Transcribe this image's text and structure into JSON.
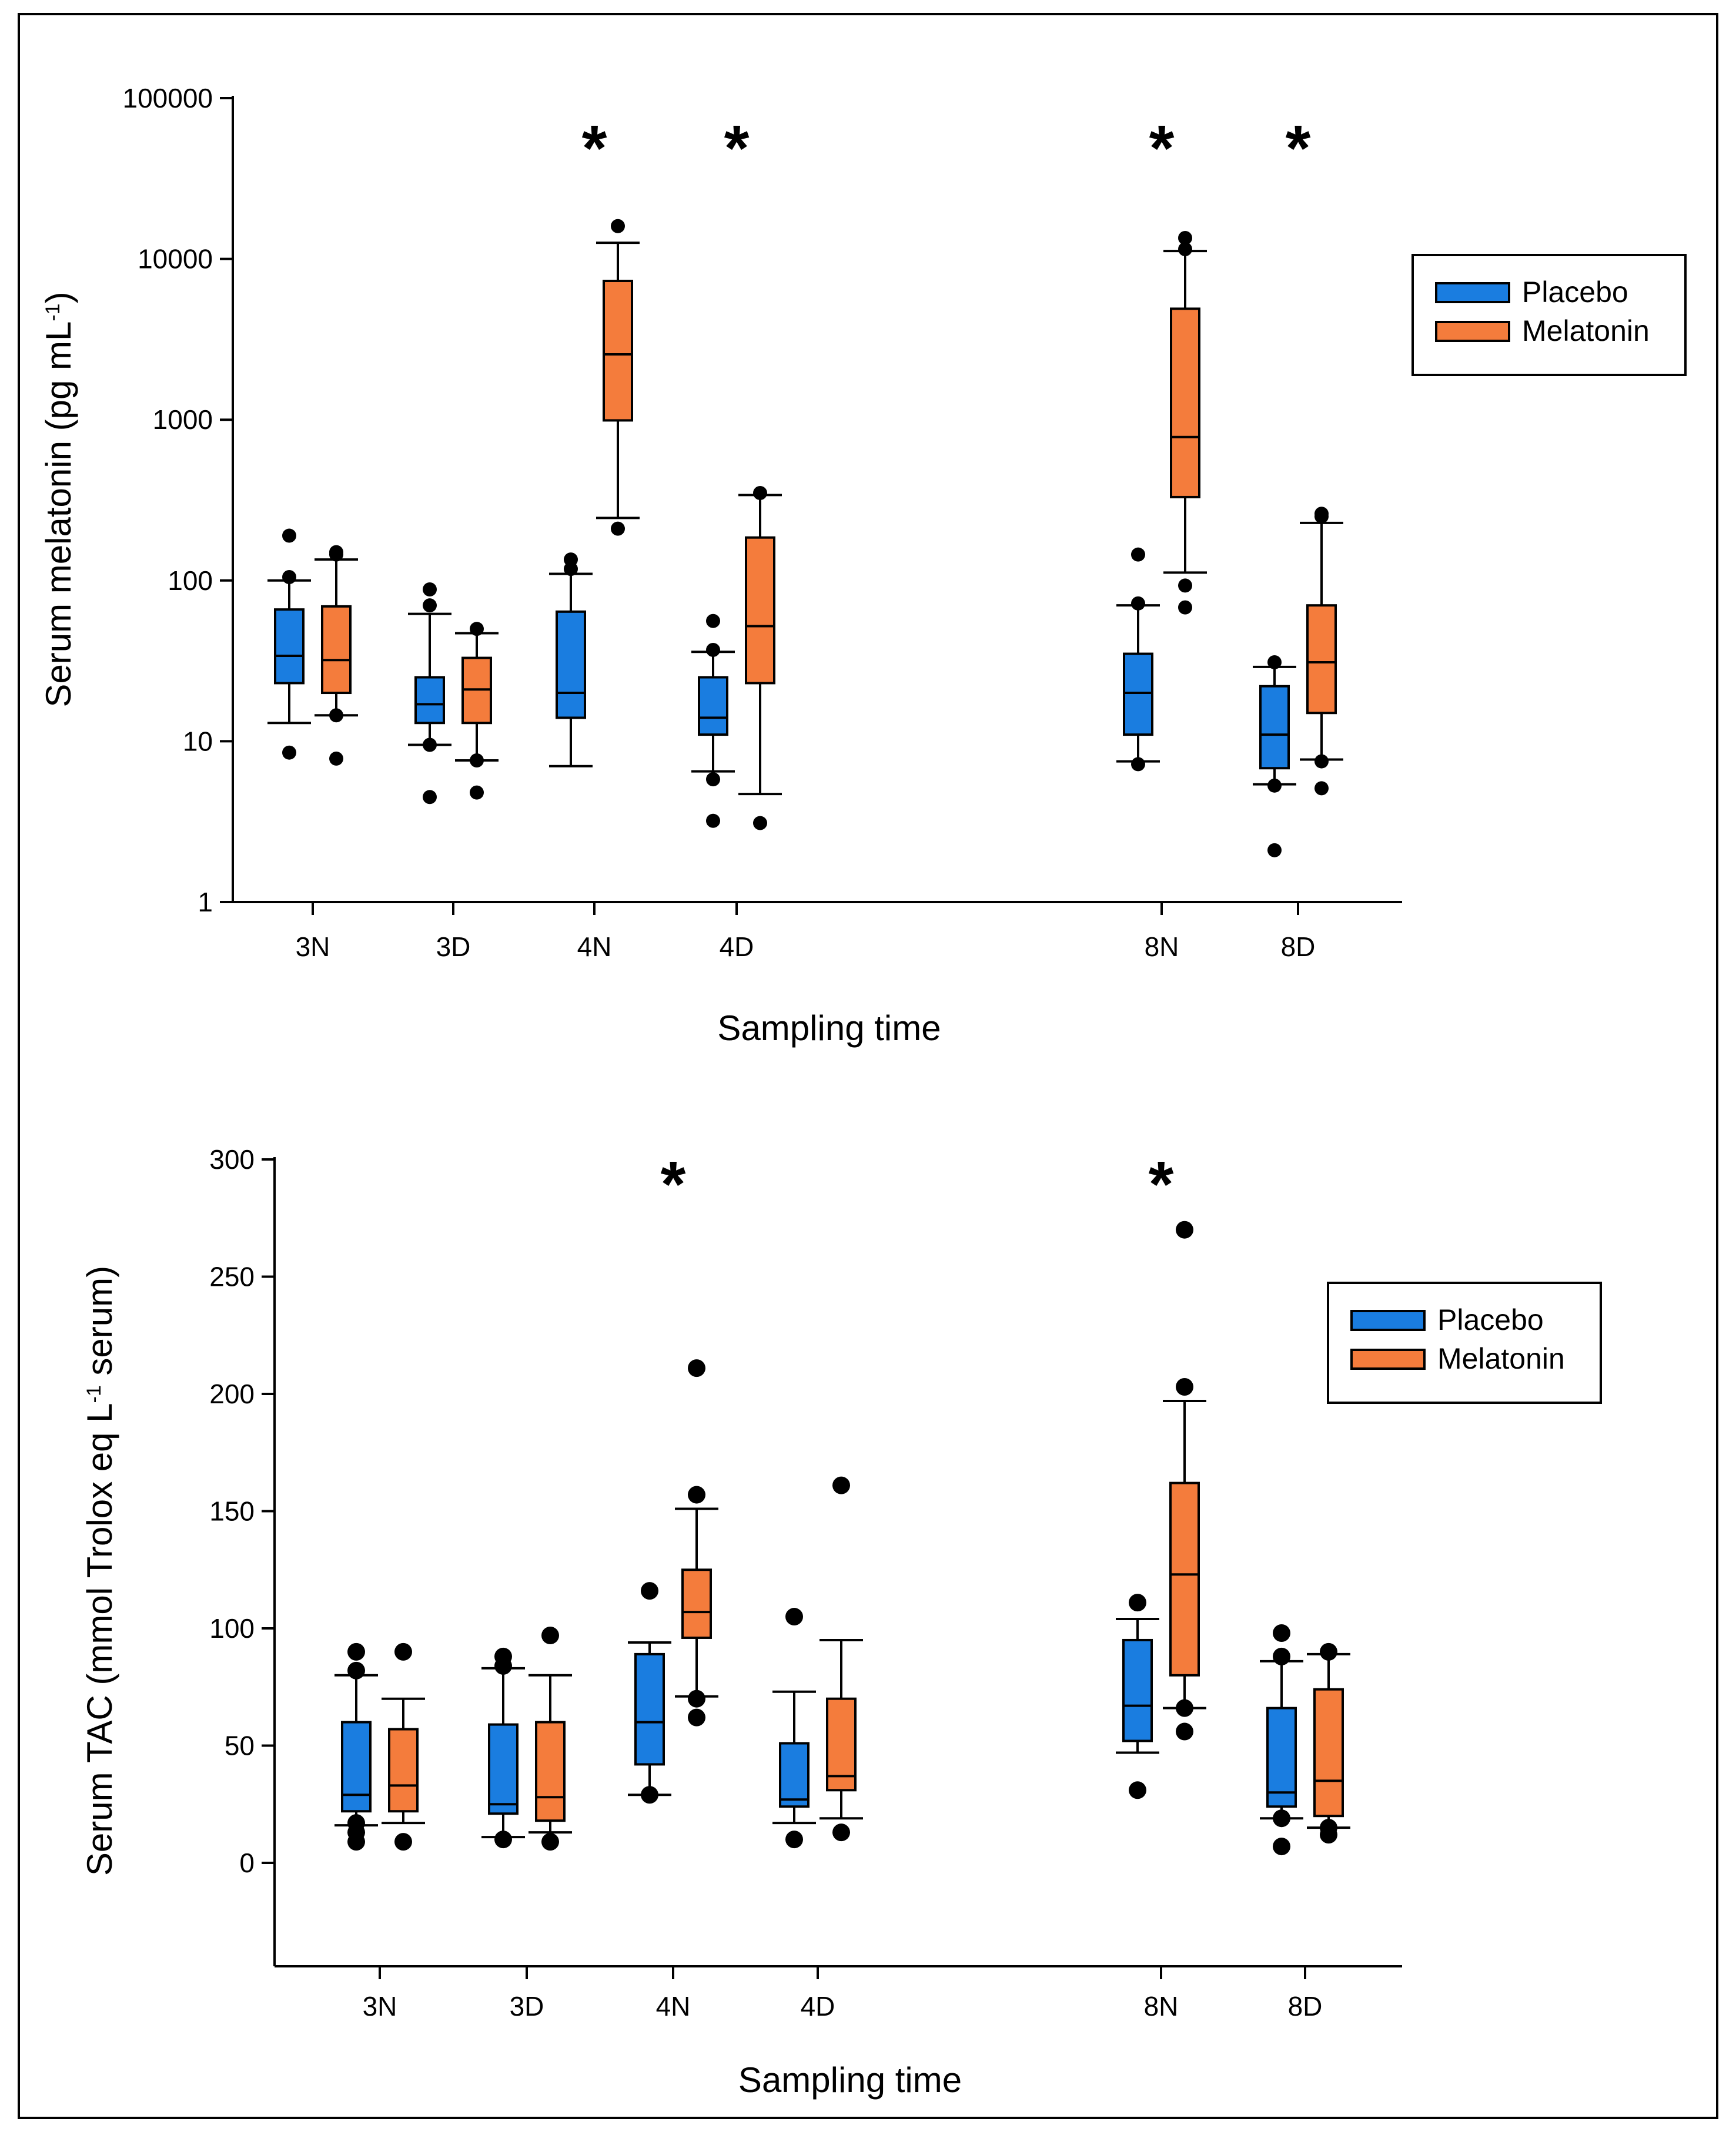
{
  "chart_data": [
    {
      "type": "box",
      "ylabel": "Serum melatonin (pg mL",
      "ylabel_sup": "-1",
      "ylabel_end": ")",
      "xlabel": "Sampling time",
      "yscale": "log",
      "ylim": [
        1,
        100000
      ],
      "yticks": [
        1,
        10,
        100,
        1000,
        10000,
        100000
      ],
      "ytick_labels": [
        "1",
        "10",
        "100",
        "1000",
        "10000",
        "100000"
      ],
      "categories": [
        "3N",
        "3D",
        "4N",
        "4D",
        "8N",
        "8D"
      ],
      "significant": [
        "4N",
        "4D",
        "8N",
        "8D"
      ],
      "star_label": "*",
      "legend": [
        "Placebo",
        "Melatonin"
      ],
      "colors": {
        "Placebo": "#1a7de0",
        "Melatonin": "#f47c3c"
      },
      "series": [
        {
          "name": "Placebo",
          "boxes": [
            {
              "cat": "3N",
              "wlo": 13,
              "q1": 23,
              "med": 34,
              "q3": 66,
              "whi": 100,
              "outliers": [
                8.5,
                105,
                190
              ]
            },
            {
              "cat": "3D",
              "wlo": 9.5,
              "q1": 13,
              "med": 17,
              "q3": 25,
              "whi": 62,
              "outliers": [
                4.5,
                9.5,
                70,
                88
              ]
            },
            {
              "cat": "4N",
              "wlo": 7,
              "q1": 14,
              "med": 20,
              "q3": 64,
              "whi": 110,
              "outliers": [
                118,
                135
              ]
            },
            {
              "cat": "4D",
              "wlo": 6.5,
              "q1": 11,
              "med": 14,
              "q3": 25,
              "whi": 36,
              "outliers": [
                3.2,
                5.8,
                37,
                56
              ]
            },
            {
              "cat": "8N",
              "wlo": 7.5,
              "q1": 11,
              "med": 20,
              "q3": 35,
              "whi": 70,
              "outliers": [
                7.2,
                72,
                145
              ]
            },
            {
              "cat": "8D",
              "wlo": 5.4,
              "q1": 6.8,
              "med": 11,
              "q3": 22,
              "whi": 29,
              "outliers": [
                2.1,
                5.3,
                31
              ]
            }
          ]
        },
        {
          "name": "Melatonin",
          "boxes": [
            {
              "cat": "3N",
              "wlo": 14.5,
              "q1": 20,
              "med": 32,
              "q3": 69,
              "whi": 135,
              "outliers": [
                7.8,
                14.5,
                145,
                150
              ]
            },
            {
              "cat": "3D",
              "wlo": 7.6,
              "q1": 13,
              "med": 21,
              "q3": 33,
              "whi": 47,
              "outliers": [
                4.8,
                7.6,
                50
              ]
            },
            {
              "cat": "4N",
              "wlo": 245,
              "q1": 990,
              "med": 2550,
              "q3": 7300,
              "whi": 12600,
              "outliers": [
                210,
                16000
              ]
            },
            {
              "cat": "4D",
              "wlo": 4.7,
              "q1": 23,
              "med": 52,
              "q3": 185,
              "whi": 340,
              "outliers": [
                3.1,
                350
              ]
            },
            {
              "cat": "8N",
              "wlo": 112,
              "q1": 330,
              "med": 780,
              "q3": 4900,
              "whi": 11200,
              "outliers": [
                68,
                93,
                11500,
                13500
              ]
            },
            {
              "cat": "8D",
              "wlo": 7.7,
              "q1": 15,
              "med": 31,
              "q3": 70,
              "whi": 228,
              "outliers": [
                5.1,
                7.5,
                250,
                260
              ]
            }
          ]
        }
      ]
    },
    {
      "type": "box",
      "ylabel": "Serum TAC (mmol Trolox eq L",
      "ylabel_sup": "-1",
      "ylabel_end": " serum)",
      "xlabel": "Sampling time",
      "yscale": "linear",
      "ylim": [
        -45,
        300
      ],
      "yticks": [
        0,
        50,
        100,
        150,
        200,
        250,
        300
      ],
      "ytick_labels": [
        "0",
        "50",
        "100",
        "150",
        "200",
        "250",
        "300"
      ],
      "categories": [
        "3N",
        "3D",
        "4N",
        "4D",
        "8N",
        "8D"
      ],
      "significant": [
        "4N",
        "8N"
      ],
      "star_label": "*",
      "legend": [
        "Placebo",
        "Melatonin"
      ],
      "colors": {
        "Placebo": "#1a7de0",
        "Melatonin": "#f47c3c"
      },
      "series": [
        {
          "name": "Placebo",
          "boxes": [
            {
              "cat": "3N",
              "wlo": 16,
              "q1": 22,
              "med": 29,
              "q3": 60,
              "whi": 80,
              "outliers": [
                9,
                13,
                17,
                82,
                90
              ]
            },
            {
              "cat": "3D",
              "wlo": 11,
              "q1": 21,
              "med": 25,
              "q3": 59,
              "whi": 83,
              "outliers": [
                10,
                84,
                88
              ]
            },
            {
              "cat": "4N",
              "wlo": 29,
              "q1": 42,
              "med": 60,
              "q3": 89,
              "whi": 94,
              "outliers": [
                29,
                116
              ]
            },
            {
              "cat": "4D",
              "wlo": 17,
              "q1": 24,
              "med": 27,
              "q3": 51,
              "whi": 73,
              "outliers": [
                10,
                105
              ]
            },
            {
              "cat": "8N",
              "wlo": 47,
              "q1": 52,
              "med": 67,
              "q3": 95,
              "whi": 104,
              "outliers": [
                31,
                111
              ]
            },
            {
              "cat": "8D",
              "wlo": 19,
              "q1": 24,
              "med": 30,
              "q3": 66,
              "whi": 86,
              "outliers": [
                7,
                19,
                88,
                98
              ]
            }
          ]
        },
        {
          "name": "Melatonin",
          "boxes": [
            {
              "cat": "3N",
              "wlo": 17,
              "q1": 22,
              "med": 33,
              "q3": 57,
              "whi": 70,
              "outliers": [
                9,
                90
              ]
            },
            {
              "cat": "3D",
              "wlo": 13,
              "q1": 18,
              "med": 28,
              "q3": 60,
              "whi": 80,
              "outliers": [
                9,
                97
              ]
            },
            {
              "cat": "4N",
              "wlo": 71,
              "q1": 96,
              "med": 107,
              "q3": 125,
              "whi": 151,
              "outliers": [
                62,
                70,
                157,
                211
              ]
            },
            {
              "cat": "4D",
              "wlo": 19,
              "q1": 31,
              "med": 37,
              "q3": 70,
              "whi": 95,
              "outliers": [
                13,
                161
              ]
            },
            {
              "cat": "8N",
              "wlo": 66,
              "q1": 80,
              "med": 123,
              "q3": 162,
              "whi": 197,
              "outliers": [
                56,
                66,
                203,
                270
              ]
            },
            {
              "cat": "8D",
              "wlo": 15,
              "q1": 20,
              "med": 35,
              "q3": 74,
              "whi": 89,
              "outliers": [
                12,
                15,
                90
              ]
            }
          ]
        }
      ]
    }
  ]
}
